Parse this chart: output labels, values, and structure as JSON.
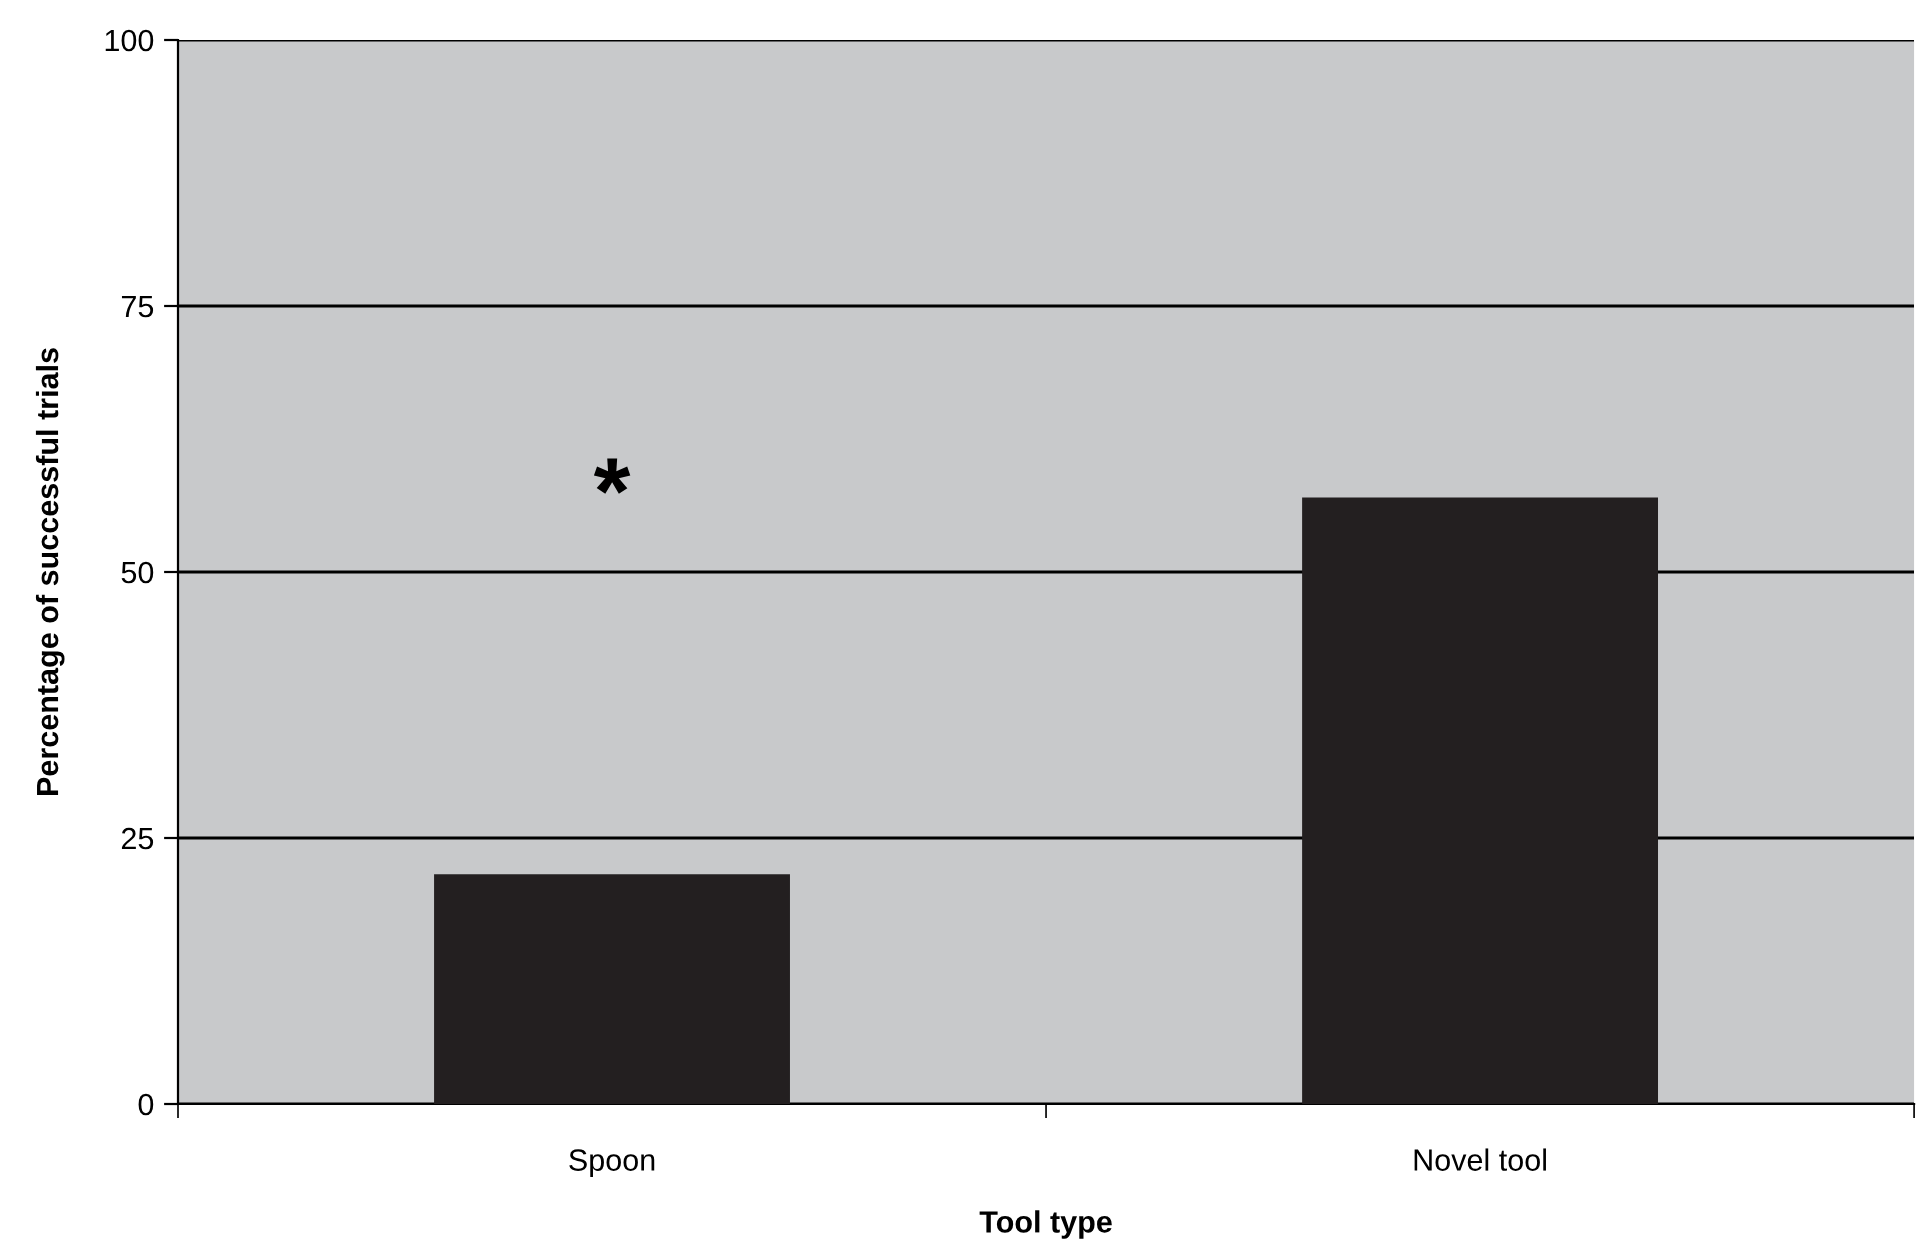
{
  "chart_data": {
    "type": "bar",
    "xlabel": "Tool type",
    "ylabel": "Percentage of successful trials",
    "categories": [
      "Spoon",
      "Novel tool"
    ],
    "values": [
      21.6,
      57.0
    ],
    "color": "#231f20",
    "ylim": [
      0,
      100
    ],
    "yticks": [
      0,
      25,
      50,
      75,
      100
    ],
    "grid": "y",
    "annotations": [
      "*"
    ]
  }
}
